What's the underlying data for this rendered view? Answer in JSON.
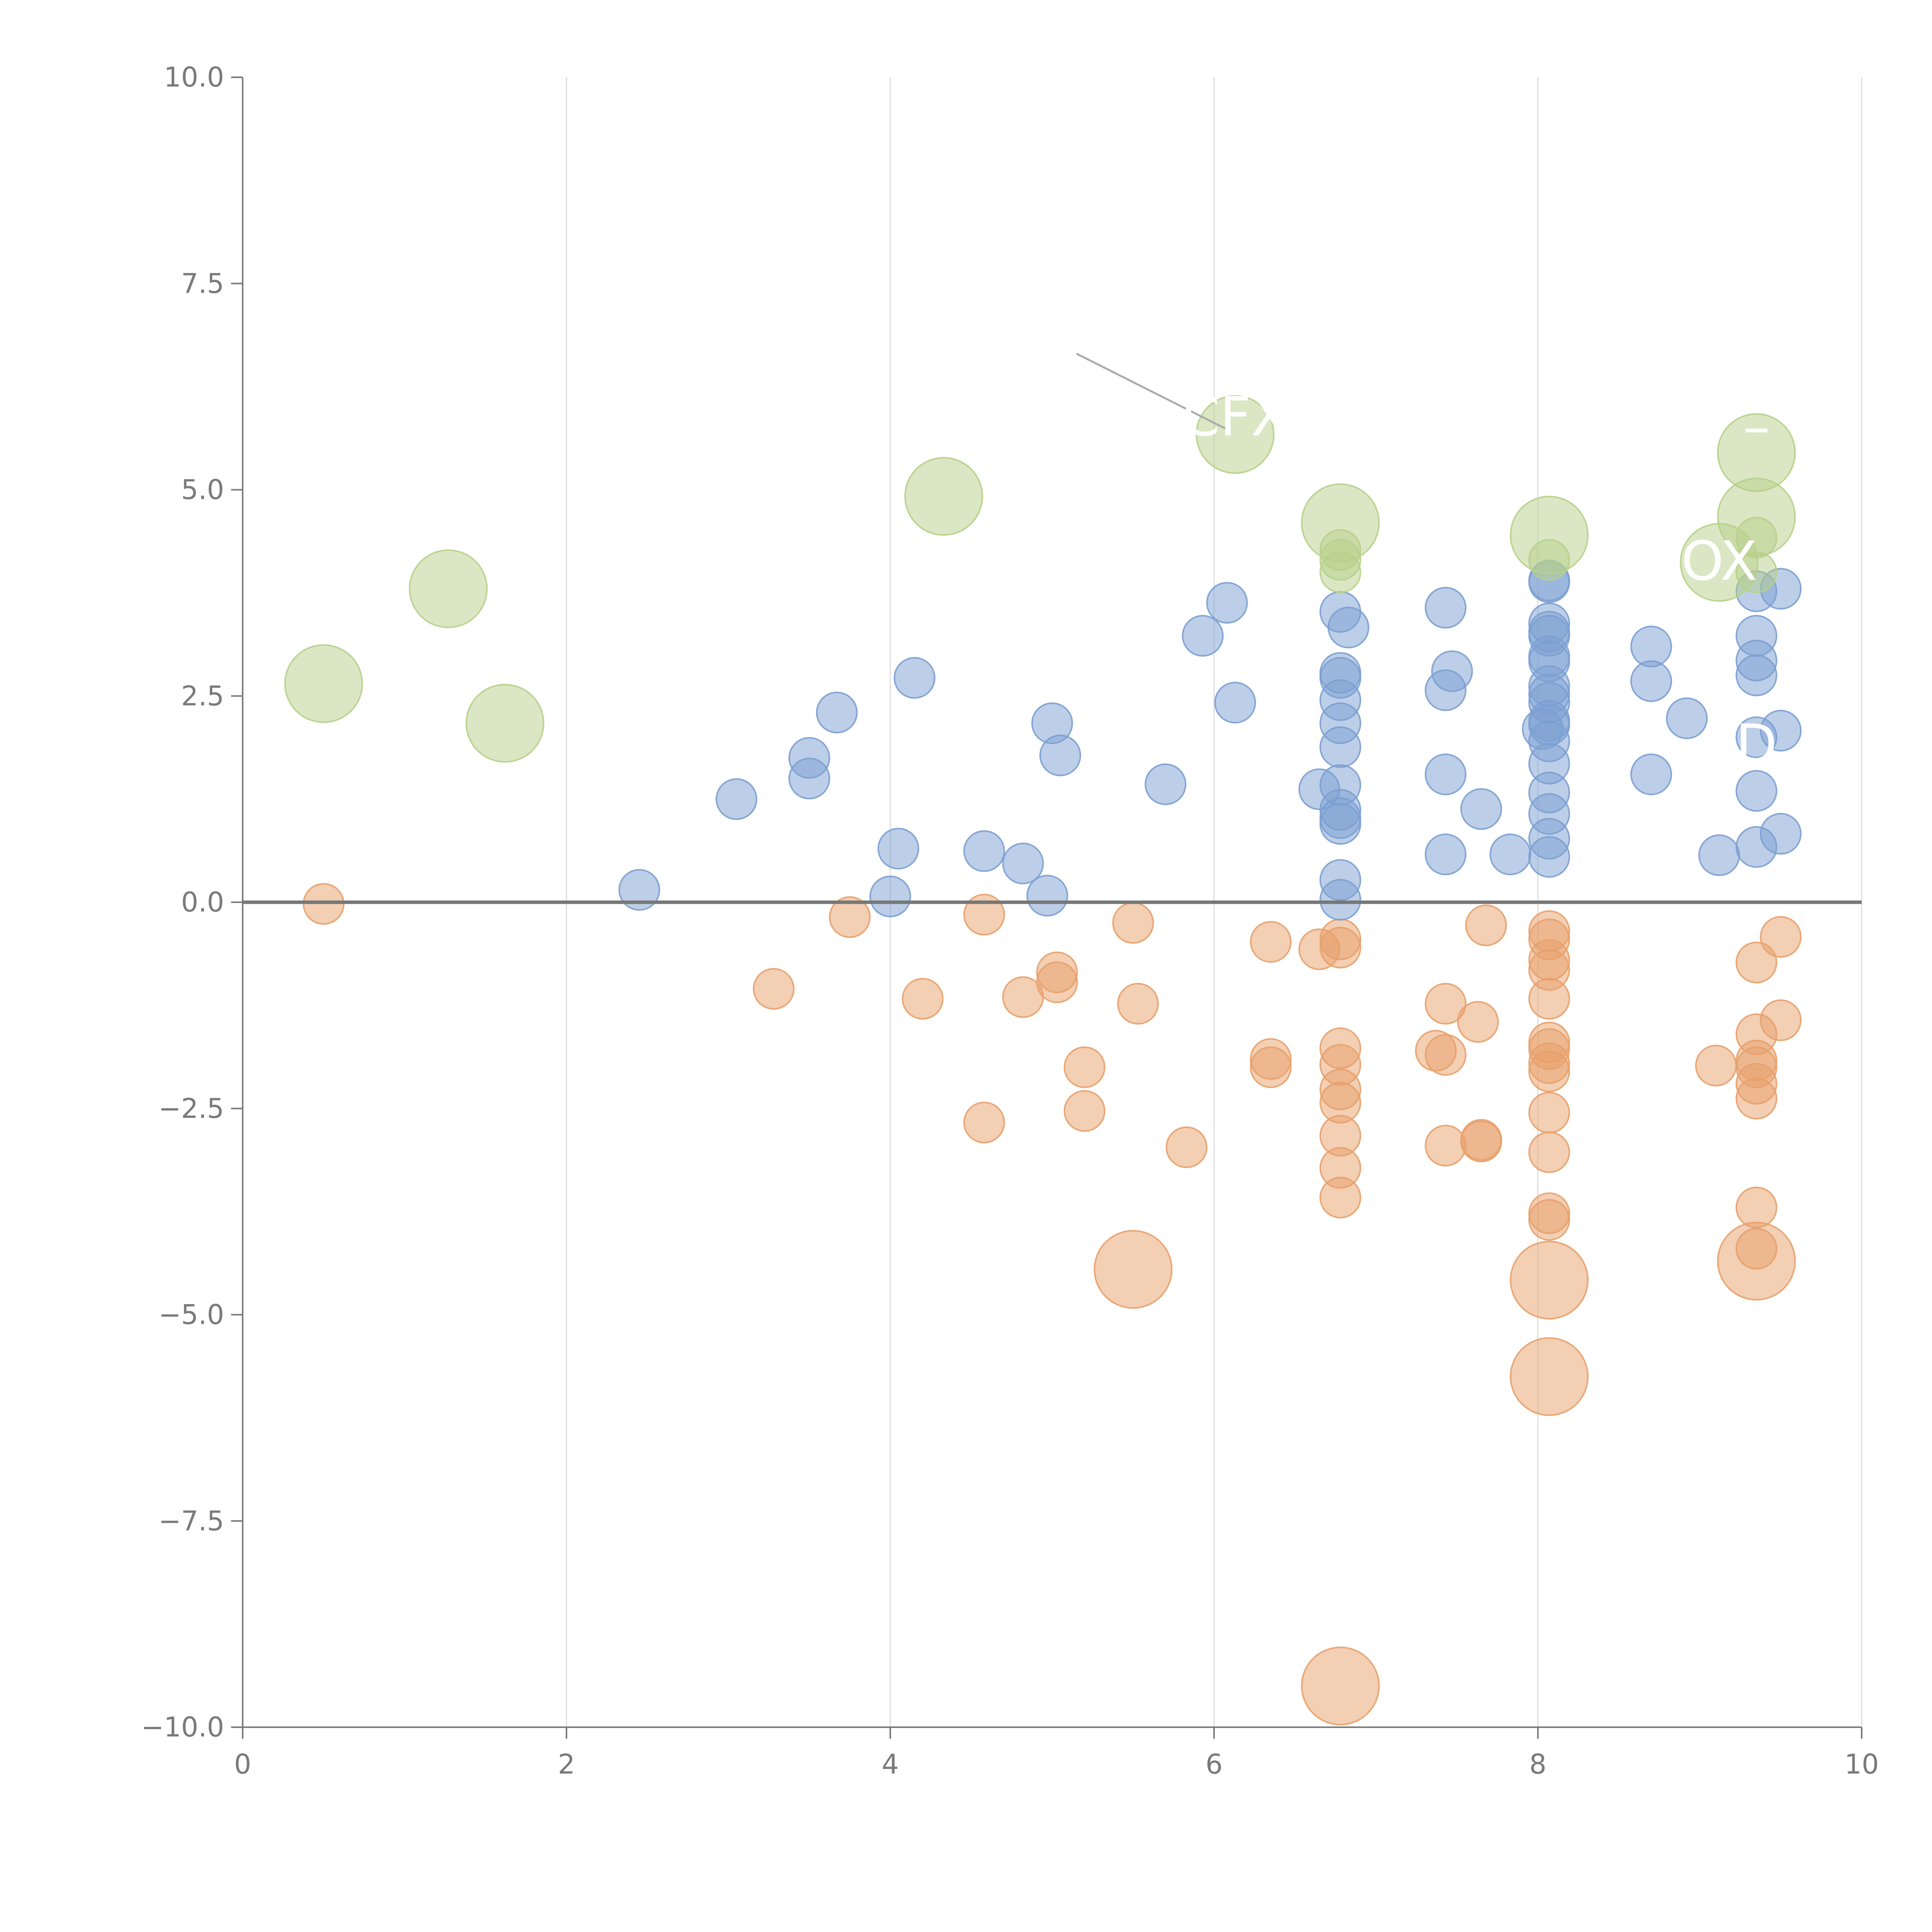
{
  "chart_data": {
    "type": "scatter",
    "title": "",
    "xlabel": "",
    "ylabel": "",
    "xlim": [
      0,
      10
    ],
    "ylim": [
      -10,
      10
    ],
    "x_ticks": [
      0,
      2,
      4,
      6,
      8,
      10
    ],
    "x_tick_labels": [
      "0",
      "2",
      "4",
      "6",
      "8",
      "10"
    ],
    "y_ticks": [
      -10,
      -7.5,
      -5,
      -2.5,
      0,
      2.5,
      5,
      7.5,
      10
    ],
    "y_tick_labels": [
      "−10.0",
      "−7.5",
      "−5.0",
      "−2.5",
      "0.0",
      "2.5",
      "5.0",
      "7.5",
      "10.0"
    ],
    "grid": {
      "vertical": true,
      "horizontal": false
    },
    "zero_line": 0,
    "colors": {
      "positive": "#7b9fd1",
      "negative": "#e8a06a",
      "highlight": "#b7d08a",
      "axis": "#7a7a7a",
      "grid": "#dddddd",
      "zero_line": "#777777",
      "label": "#ffffff"
    },
    "series": [
      {
        "name": "positive",
        "size": "small",
        "points": [
          [
            2.45,
            0.15
          ],
          [
            3.05,
            1.25
          ],
          [
            3.5,
            1.75
          ],
          [
            3.5,
            1.5
          ],
          [
            3.67,
            2.3
          ],
          [
            4.0,
            0.07
          ],
          [
            4.05,
            0.65
          ],
          [
            4.15,
            2.72
          ],
          [
            4.58,
            0.62
          ],
          [
            4.82,
            0.47
          ],
          [
            4.97,
            0.08
          ],
          [
            5.0,
            2.17
          ],
          [
            5.05,
            1.78
          ],
          [
            5.7,
            1.43
          ],
          [
            5.93,
            3.23
          ],
          [
            6.08,
            3.63
          ],
          [
            6.13,
            2.42
          ],
          [
            6.65,
            1.37
          ],
          [
            6.78,
            3.52
          ],
          [
            6.78,
            2.78
          ],
          [
            6.78,
            2.72
          ],
          [
            6.78,
            2.45
          ],
          [
            6.78,
            2.17
          ],
          [
            6.78,
            1.88
          ],
          [
            6.78,
            1.42
          ],
          [
            6.78,
            1.12
          ],
          [
            6.78,
            1.02
          ],
          [
            6.78,
            0.95
          ],
          [
            6.78,
            0.27
          ],
          [
            6.78,
            0.03
          ],
          [
            6.83,
            3.33
          ],
          [
            7.43,
            3.57
          ],
          [
            7.43,
            2.57
          ],
          [
            7.43,
            1.55
          ],
          [
            7.43,
            0.58
          ],
          [
            7.47,
            2.8
          ],
          [
            7.65,
            1.13
          ],
          [
            7.83,
            0.58
          ],
          [
            8.07,
            3.9
          ],
          [
            8.07,
            3.88
          ],
          [
            8.07,
            3.38
          ],
          [
            8.07,
            3.28
          ],
          [
            8.07,
            3.23
          ],
          [
            8.07,
            2.98
          ],
          [
            8.07,
            2.92
          ],
          [
            8.07,
            2.62
          ],
          [
            8.07,
            2.52
          ],
          [
            8.07,
            2.42
          ],
          [
            8.07,
            2.2
          ],
          [
            8.07,
            2.15
          ],
          [
            8.03,
            2.1
          ],
          [
            8.07,
            1.95
          ],
          [
            8.07,
            1.68
          ],
          [
            8.07,
            1.33
          ],
          [
            8.07,
            1.07
          ],
          [
            8.07,
            0.77
          ],
          [
            8.07,
            0.55
          ],
          [
            8.7,
            3.1
          ],
          [
            8.7,
            2.68
          ],
          [
            8.7,
            1.55
          ],
          [
            8.92,
            2.23
          ],
          [
            9.12,
            0.57
          ],
          [
            9.35,
            3.77
          ],
          [
            9.35,
            3.23
          ],
          [
            9.35,
            2.93
          ],
          [
            9.35,
            2.75
          ],
          [
            9.35,
            2.0
          ],
          [
            9.35,
            1.35
          ],
          [
            9.35,
            0.67
          ],
          [
            9.5,
            3.8
          ],
          [
            9.5,
            2.08
          ],
          [
            9.5,
            0.83
          ]
        ]
      },
      {
        "name": "negative",
        "size": "small",
        "points": [
          [
            0.5,
            -0.02
          ],
          [
            3.28,
            -1.05
          ],
          [
            3.75,
            -0.18
          ],
          [
            4.2,
            -1.17
          ],
          [
            4.58,
            -0.15
          ],
          [
            4.58,
            -2.67
          ],
          [
            4.82,
            -1.15
          ],
          [
            5.03,
            -0.85
          ],
          [
            5.03,
            -0.97
          ],
          [
            5.2,
            -2.0
          ],
          [
            5.2,
            -2.53
          ],
          [
            5.5,
            -0.25
          ],
          [
            5.53,
            -1.23
          ],
          [
            5.83,
            -2.97
          ],
          [
            6.35,
            -0.48
          ],
          [
            6.35,
            -1.9
          ],
          [
            6.35,
            -2.0
          ],
          [
            6.65,
            -0.57
          ],
          [
            6.78,
            -0.45
          ],
          [
            6.78,
            -0.55
          ],
          [
            6.78,
            -1.77
          ],
          [
            6.78,
            -1.97
          ],
          [
            6.78,
            -2.27
          ],
          [
            6.78,
            -2.43
          ],
          [
            6.78,
            -2.83
          ],
          [
            6.78,
            -3.22
          ],
          [
            6.78,
            -3.58
          ],
          [
            7.37,
            -1.8
          ],
          [
            7.43,
            -1.85
          ],
          [
            7.43,
            -1.23
          ],
          [
            7.43,
            -2.95
          ],
          [
            7.63,
            -1.45
          ],
          [
            7.65,
            -2.88
          ],
          [
            7.65,
            -2.9
          ],
          [
            7.68,
            -0.28
          ],
          [
            8.07,
            -0.35
          ],
          [
            8.07,
            -0.45
          ],
          [
            8.07,
            -0.7
          ],
          [
            8.07,
            -0.82
          ],
          [
            8.07,
            -1.17
          ],
          [
            8.07,
            -1.7
          ],
          [
            8.07,
            -1.78
          ],
          [
            8.07,
            -1.95
          ],
          [
            8.07,
            -2.05
          ],
          [
            8.07,
            -2.55
          ],
          [
            8.07,
            -3.03
          ],
          [
            8.07,
            -3.77
          ],
          [
            8.07,
            -3.85
          ],
          [
            9.1,
            -1.98
          ],
          [
            9.35,
            -0.73
          ],
          [
            9.35,
            -1.6
          ],
          [
            9.35,
            -1.92
          ],
          [
            9.35,
            -2.0
          ],
          [
            9.35,
            -2.2
          ],
          [
            9.35,
            -2.38
          ],
          [
            9.35,
            -3.7
          ],
          [
            9.35,
            -4.2
          ],
          [
            9.5,
            -0.42
          ],
          [
            9.5,
            -1.43
          ]
        ]
      },
      {
        "name": "highlight-small",
        "size": "small",
        "points": [
          [
            6.78,
            4.27
          ],
          [
            6.78,
            4.15
          ],
          [
            6.78,
            4.0
          ],
          [
            8.07,
            4.15
          ],
          [
            9.35,
            4.42
          ],
          [
            9.35,
            4.0
          ]
        ]
      },
      {
        "name": "highlight",
        "size": "large",
        "points": [
          [
            0.5,
            2.65
          ],
          [
            1.27,
            3.8
          ],
          [
            1.62,
            2.17
          ],
          [
            4.33,
            4.92
          ],
          [
            6.13,
            5.67
          ],
          [
            6.78,
            4.6
          ],
          [
            8.07,
            4.45
          ],
          [
            9.12,
            4.12
          ],
          [
            9.35,
            5.45
          ],
          [
            9.35,
            4.67
          ]
        ]
      },
      {
        "name": "negative-large",
        "size": "large",
        "points": [
          [
            5.5,
            -4.45
          ],
          [
            8.07,
            -4.58
          ],
          [
            8.07,
            -5.75
          ],
          [
            9.35,
            -4.35
          ],
          [
            6.78,
            -9.5
          ]
        ]
      }
    ],
    "annotations": [
      {
        "text": "CFX",
        "x": 6.13,
        "y": 5.87
      },
      {
        "text": "OX",
        "x": 9.12,
        "y": 4.12
      },
      {
        "text": "D",
        "x": 9.35,
        "y": 1.9
      },
      {
        "text": "–",
        "x": 9.35,
        "y": 5.75
      }
    ]
  }
}
